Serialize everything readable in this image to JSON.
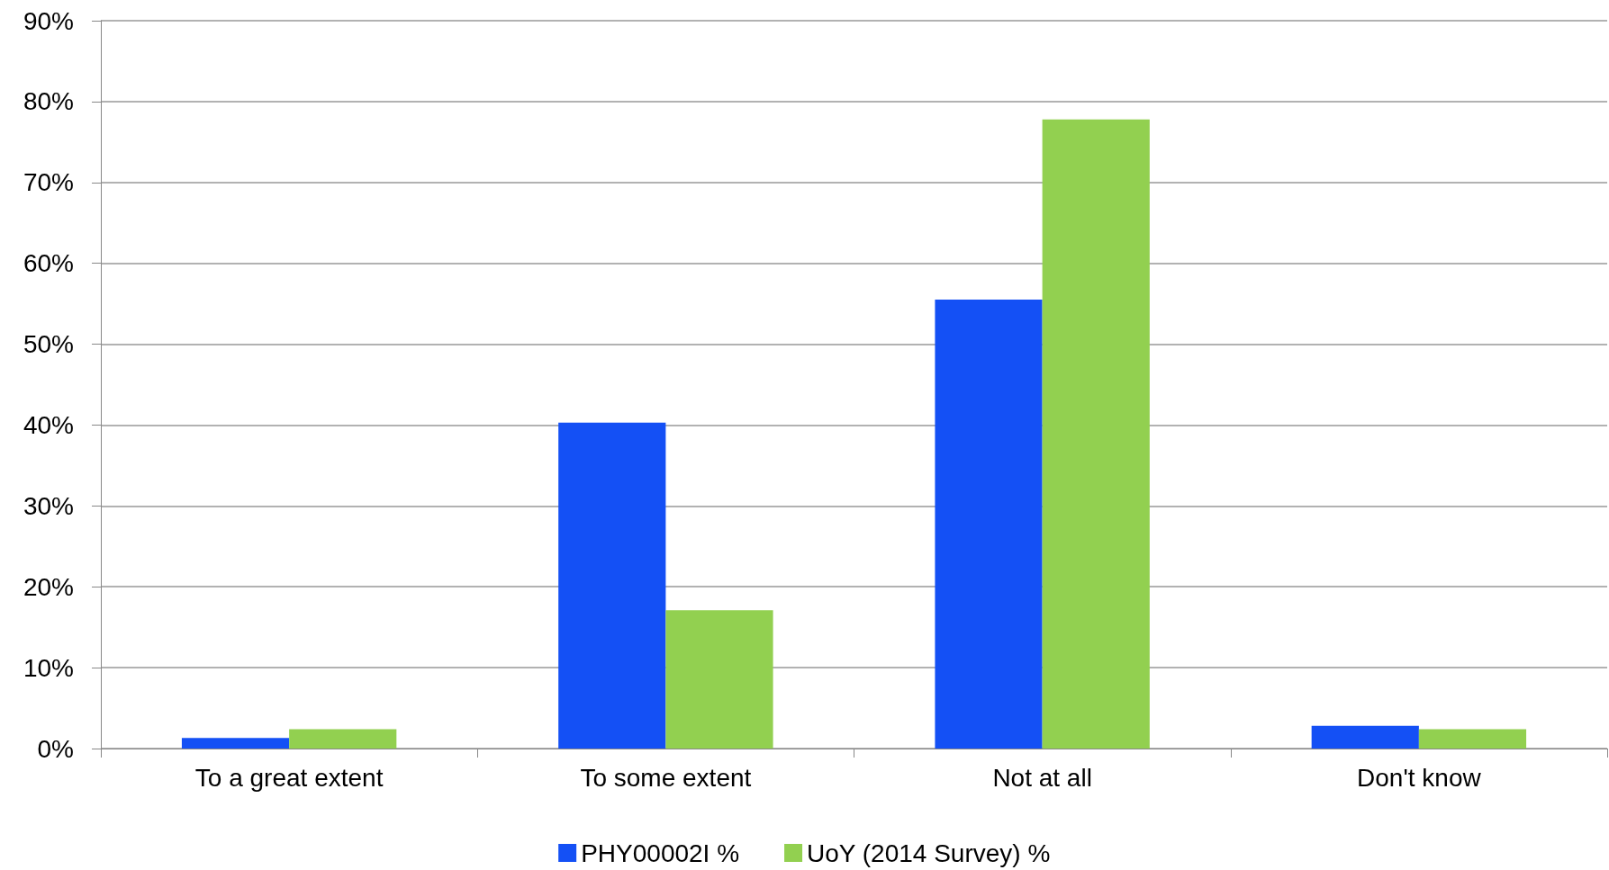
{
  "chart_data": {
    "type": "bar",
    "categories": [
      "To a great extent",
      "To some extent",
      "Not at all",
      "Don't know"
    ],
    "series": [
      {
        "name": "PHY00002I %",
        "color": "#1450f5",
        "values": [
          1.3,
          40.3,
          55.5,
          2.8
        ]
      },
      {
        "name": "UoY (2014 Survey) %",
        "color": "#92d050",
        "values": [
          2.4,
          17.1,
          77.8,
          2.4
        ]
      }
    ],
    "ylim": [
      0,
      90
    ],
    "yticks": [
      {
        "value": 0,
        "label": "0%"
      },
      {
        "value": 10,
        "label": "10%"
      },
      {
        "value": 20,
        "label": "20%"
      },
      {
        "value": 30,
        "label": "30%"
      },
      {
        "value": 40,
        "label": "40%"
      },
      {
        "value": 50,
        "label": "50%"
      },
      {
        "value": 60,
        "label": "60%"
      },
      {
        "value": 70,
        "label": "70%"
      },
      {
        "value": 80,
        "label": "80%"
      },
      {
        "value": 90,
        "label": "90%"
      }
    ],
    "grid": "y",
    "legend": "bottom"
  }
}
